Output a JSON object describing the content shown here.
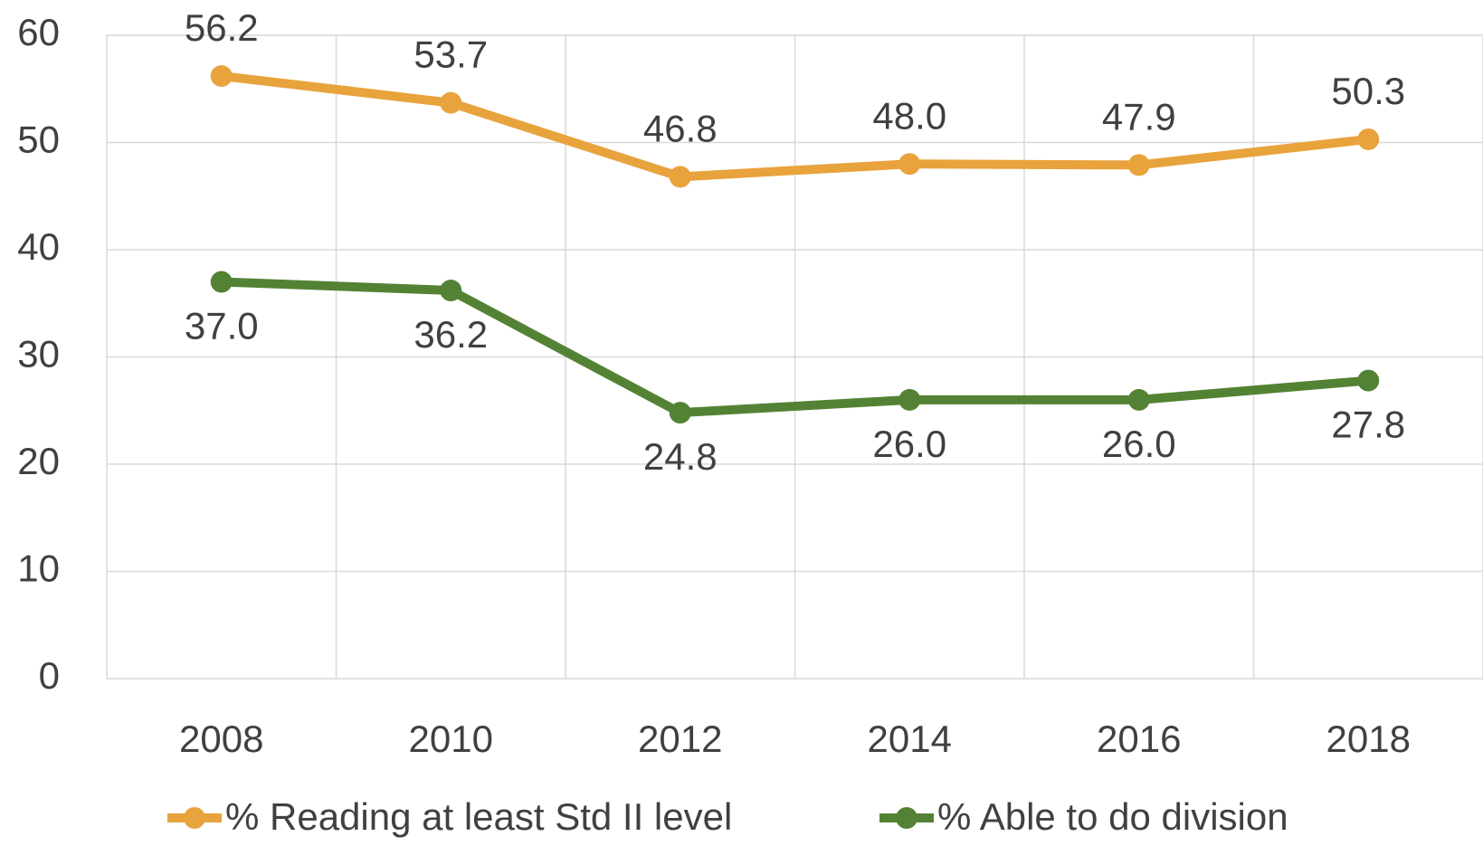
{
  "chart_data": {
    "type": "line",
    "categories": [
      "2008",
      "2010",
      "2012",
      "2014",
      "2016",
      "2018"
    ],
    "series": [
      {
        "name": "% Reading at least Std II level",
        "color": "#E8A33D",
        "values": [
          56.2,
          53.7,
          46.8,
          48.0,
          47.9,
          50.3
        ],
        "value_labels": [
          "56.2",
          "53.7",
          "46.8",
          "48.0",
          "47.9",
          "50.3"
        ]
      },
      {
        "name": "% Able to do division",
        "color": "#548235",
        "values": [
          37.0,
          36.2,
          24.8,
          26.0,
          26.0,
          27.8
        ],
        "value_labels": [
          "37.0",
          "36.2",
          "24.8",
          "26.0",
          "26.0",
          "27.8"
        ]
      }
    ],
    "ylim": [
      0,
      60
    ],
    "yticks": [
      0,
      10,
      20,
      30,
      40,
      50,
      60
    ],
    "grid": true,
    "legend": "bottom"
  }
}
